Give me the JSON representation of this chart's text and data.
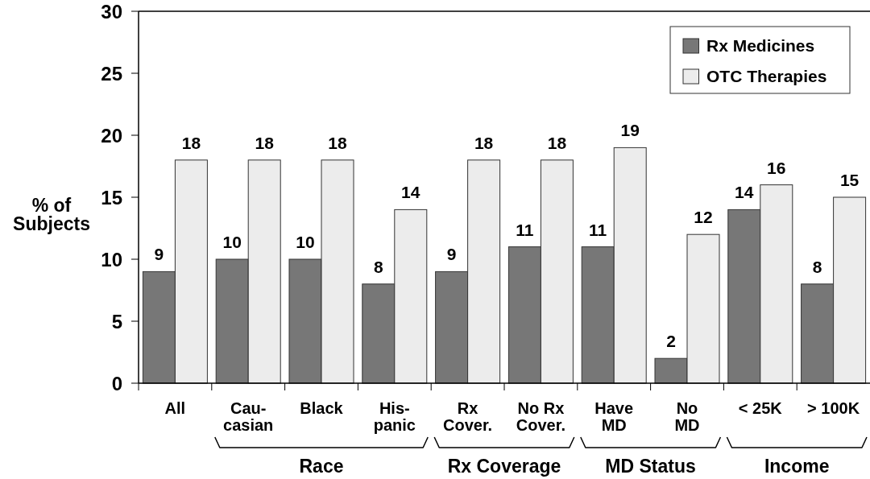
{
  "chart_data": {
    "type": "bar",
    "ylabel": "% of\nSubjects",
    "categories": [
      "All",
      "Cau-\ncasian",
      "Black",
      "His-\npanic",
      "Rx\nCover.",
      "No Rx\nCover.",
      "Have\nMD",
      "No\nMD",
      "< 25K",
      "> 100K"
    ],
    "series": [
      {
        "name": "Rx Medicines",
        "color": "#777777",
        "values": [
          9,
          10,
          10,
          8,
          9,
          11,
          11,
          2,
          14,
          8
        ]
      },
      {
        "name": "OTC Therapies",
        "color": "#ececec",
        "values": [
          18,
          18,
          18,
          14,
          18,
          18,
          19,
          12,
          16,
          15
        ]
      }
    ],
    "ylim": [
      0,
      30
    ],
    "yticks": [
      0,
      5,
      10,
      15,
      20,
      25,
      30
    ],
    "data_labels": true,
    "legend": "top right",
    "annotations": [
      "Race",
      "Rx Coverage",
      "MD Status",
      "Income"
    ]
  }
}
